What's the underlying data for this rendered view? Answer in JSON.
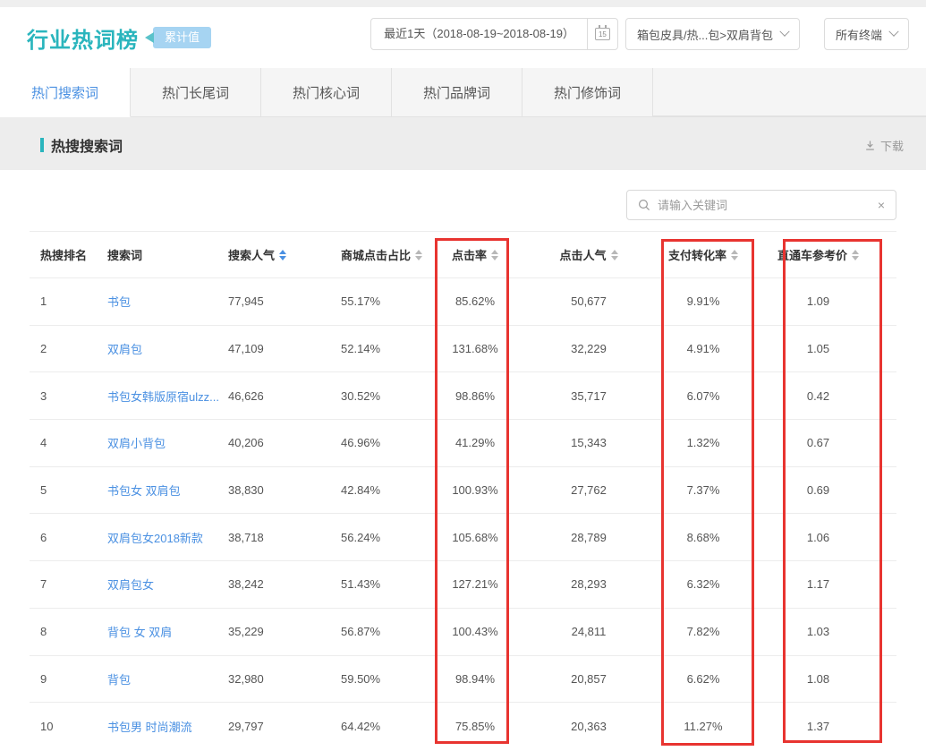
{
  "colors": {
    "accent_teal": "#2ab5bd",
    "link_blue": "#4a90e2",
    "highlight_red": "#e83430",
    "badge_bg": "#a6d4f2"
  },
  "header": {
    "title": "行业热词榜",
    "badge": "累计值",
    "date_filter": {
      "label": "最近1天（2018-08-19~2018-08-19）",
      "calendar_day": "15"
    },
    "category_filter": {
      "label": "箱包皮具/热...包>双肩背包"
    },
    "terminal_filter": {
      "label": "所有终端"
    }
  },
  "tabs": [
    {
      "label": "热门搜索词",
      "active": true
    },
    {
      "label": "热门长尾词",
      "active": false
    },
    {
      "label": "热门核心词",
      "active": false
    },
    {
      "label": "热门品牌词",
      "active": false
    },
    {
      "label": "热门修饰词",
      "active": false
    }
  ],
  "section": {
    "title": "热搜搜索词",
    "download_label": "下载"
  },
  "search": {
    "placeholder": "请输入关键词",
    "clear_icon": "×"
  },
  "table": {
    "columns": [
      {
        "key": "rank",
        "label": "热搜排名",
        "sortable": false,
        "align": "left"
      },
      {
        "key": "keyword",
        "label": "搜索词",
        "sortable": false,
        "align": "left"
      },
      {
        "key": "search_volume",
        "label": "搜索人气",
        "sortable": true,
        "sort_active": true,
        "align": "left"
      },
      {
        "key": "mall_click_ratio",
        "label": "商城点击占比",
        "sortable": true,
        "align": "left"
      },
      {
        "key": "ctr",
        "label": "点击率",
        "sortable": true,
        "align": "center",
        "highlighted": true
      },
      {
        "key": "click_volume",
        "label": "点击人气",
        "sortable": true,
        "align": "center"
      },
      {
        "key": "pay_conversion",
        "label": "支付转化率",
        "sortable": true,
        "align": "center",
        "highlighted": true
      },
      {
        "key": "ppc_ref_price",
        "label": "直通车参考价",
        "sortable": true,
        "align": "center",
        "highlighted": true
      }
    ],
    "rows": [
      {
        "rank": "1",
        "keyword": "书包",
        "search_volume": "77,945",
        "mall_click_ratio": "55.17%",
        "ctr": "85.62%",
        "click_volume": "50,677",
        "pay_conversion": "9.91%",
        "ppc_ref_price": "1.09"
      },
      {
        "rank": "2",
        "keyword": "双肩包",
        "search_volume": "47,109",
        "mall_click_ratio": "52.14%",
        "ctr": "131.68%",
        "click_volume": "32,229",
        "pay_conversion": "4.91%",
        "ppc_ref_price": "1.05"
      },
      {
        "rank": "3",
        "keyword": "书包女韩版原宿ulzz...",
        "search_volume": "46,626",
        "mall_click_ratio": "30.52%",
        "ctr": "98.86%",
        "click_volume": "35,717",
        "pay_conversion": "6.07%",
        "ppc_ref_price": "0.42"
      },
      {
        "rank": "4",
        "keyword": "双肩小背包",
        "search_volume": "40,206",
        "mall_click_ratio": "46.96%",
        "ctr": "41.29%",
        "click_volume": "15,343",
        "pay_conversion": "1.32%",
        "ppc_ref_price": "0.67"
      },
      {
        "rank": "5",
        "keyword": "书包女 双肩包",
        "search_volume": "38,830",
        "mall_click_ratio": "42.84%",
        "ctr": "100.93%",
        "click_volume": "27,762",
        "pay_conversion": "7.37%",
        "ppc_ref_price": "0.69"
      },
      {
        "rank": "6",
        "keyword": "双肩包女2018新款",
        "search_volume": "38,718",
        "mall_click_ratio": "56.24%",
        "ctr": "105.68%",
        "click_volume": "28,789",
        "pay_conversion": "8.68%",
        "ppc_ref_price": "1.06"
      },
      {
        "rank": "7",
        "keyword": "双肩包女",
        "search_volume": "38,242",
        "mall_click_ratio": "51.43%",
        "ctr": "127.21%",
        "click_volume": "28,293",
        "pay_conversion": "6.32%",
        "ppc_ref_price": "1.17"
      },
      {
        "rank": "8",
        "keyword": "背包 女 双肩",
        "search_volume": "35,229",
        "mall_click_ratio": "56.87%",
        "ctr": "100.43%",
        "click_volume": "24,811",
        "pay_conversion": "7.82%",
        "ppc_ref_price": "1.03"
      },
      {
        "rank": "9",
        "keyword": "背包",
        "search_volume": "32,980",
        "mall_click_ratio": "59.50%",
        "ctr": "98.94%",
        "click_volume": "20,857",
        "pay_conversion": "6.62%",
        "ppc_ref_price": "1.08"
      },
      {
        "rank": "10",
        "keyword": "书包男 时尚潮流",
        "search_volume": "29,797",
        "mall_click_ratio": "64.42%",
        "ctr": "75.85%",
        "click_volume": "20,363",
        "pay_conversion": "11.27%",
        "ppc_ref_price": "1.37"
      }
    ]
  }
}
